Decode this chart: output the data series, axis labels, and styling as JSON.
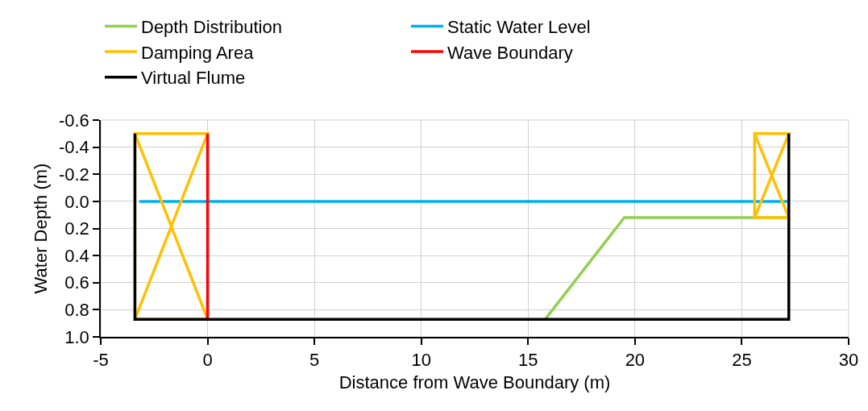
{
  "chart_data": {
    "type": "line",
    "xlabel": "Distance from Wave Boundary (m)",
    "ylabel": "Water Depth (m)",
    "xlim": [
      -5,
      30
    ],
    "xticks": [
      -5,
      0,
      5,
      10,
      15,
      20,
      25,
      30
    ],
    "ylim": [
      1.0,
      -0.6
    ],
    "yticks": [
      {
        "value": -0.6,
        "label": "-0.6"
      },
      {
        "value": -0.4,
        "label": "-0.4"
      },
      {
        "value": -0.2,
        "label": "-0.2"
      },
      {
        "value": 0,
        "label": "0.0"
      },
      {
        "value": 0.2,
        "label": "0.2"
      },
      {
        "value": 0.4,
        "label": "0.4"
      },
      {
        "value": 0.6,
        "label": "0.6"
      },
      {
        "value": 0.8,
        "label": "0.8"
      },
      {
        "value": 1.0,
        "label": "1.0"
      }
    ],
    "grid": true,
    "legend": "top",
    "marker": "none",
    "line_style": "solid",
    "series": [
      {
        "name": "Depth Distribution",
        "color": "#92d050",
        "x": [
          15.8,
          19.5,
          27.2
        ],
        "values": [
          0.87,
          0.12,
          0.12
        ]
      },
      {
        "name": "Static Water Level",
        "color": "#00b0f0",
        "x": [
          -3.2,
          27.2
        ],
        "values": [
          0,
          0
        ]
      },
      {
        "name": "Damping Area",
        "color": "#ffc000",
        "x": [
          -3.4,
          -3.4,
          0,
          -3.4,
          0,
          -3.4,
          null,
          25.6,
          25.6,
          27.2,
          25.6,
          27.2,
          25.6
        ],
        "values": [
          0.87,
          -0.5,
          -0.5,
          0.87,
          0.87,
          -0.5,
          null,
          0.12,
          -0.5,
          -0.5,
          0.12,
          0.12,
          -0.5
        ]
      },
      {
        "name": "Wave Boundary",
        "color": "#ff0000",
        "x": [
          0,
          0
        ],
        "values": [
          -0.5,
          0.87
        ]
      },
      {
        "name": "Virtual Flume",
        "color": "#000000",
        "x": [
          -3.4,
          -3.4,
          27.2,
          27.2
        ],
        "values": [
          -0.5,
          0.87,
          0.87,
          -0.5
        ]
      }
    ]
  }
}
